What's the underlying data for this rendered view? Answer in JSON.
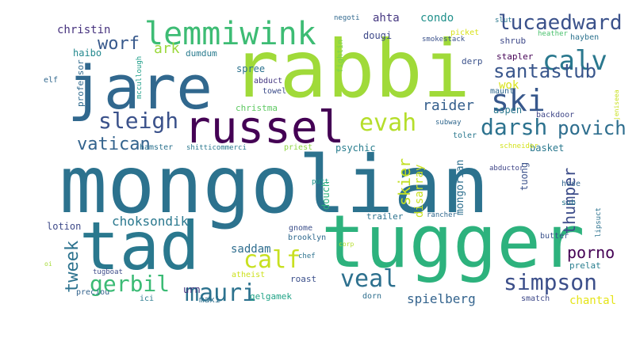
{
  "words": [
    {
      "text": "mongolian",
      "color": "#2c728e"
    },
    {
      "text": "rabbi",
      "color": "#a0da39"
    },
    {
      "text": "jare",
      "color": "#31688e"
    },
    {
      "text": "tugger",
      "color": "#2db27d"
    },
    {
      "text": "tad",
      "color": "#2a788e"
    },
    {
      "text": "russel",
      "color": "#440154"
    },
    {
      "text": "lemmiwink",
      "color": "#3dbc74"
    },
    {
      "text": "ski",
      "color": "#38588c"
    },
    {
      "text": "calv",
      "color": "#2a788e"
    },
    {
      "text": "lucaedward",
      "color": "#3b528b"
    },
    {
      "text": "santastub",
      "color": "#39568c"
    },
    {
      "text": "sleigh",
      "color": "#3b528b"
    },
    {
      "text": "evah",
      "color": "#b5de2b"
    },
    {
      "text": "darsh",
      "color": "#2c728e"
    },
    {
      "text": "povich",
      "color": "#2e6e8e"
    },
    {
      "text": "vatican",
      "color": "#33638d"
    },
    {
      "text": "worf",
      "color": "#38598c"
    },
    {
      "text": "calf",
      "color": "#c8e020"
    },
    {
      "text": "veal",
      "color": "#2d708e"
    },
    {
      "text": "mauri",
      "color": "#2c728e"
    },
    {
      "text": "simpson",
      "color": "#3c4f8a"
    },
    {
      "text": "gerbil",
      "color": "#3bbb75"
    },
    {
      "text": "tweek",
      "color": "#2c728e"
    },
    {
      "text": "thumper",
      "color": "#3d4d8a"
    },
    {
      "text": "skier",
      "color": "#c2df23"
    },
    {
      "text": "porno",
      "color": "#440154"
    },
    {
      "text": "raider",
      "color": "#355f8d"
    },
    {
      "text": "spielberg",
      "color": "#33638d"
    },
    {
      "text": "saddam",
      "color": "#2e6d8e"
    },
    {
      "text": "choksondik",
      "color": "#2a788e"
    },
    {
      "text": "christin",
      "color": "#46327e"
    },
    {
      "text": "condo",
      "color": "#21918c"
    },
    {
      "text": "ahta",
      "color": "#453781"
    },
    {
      "text": "dougi",
      "color": "#3e4989"
    },
    {
      "text": "wok",
      "color": "#d8e219"
    },
    {
      "text": "aspen",
      "color": "#2a788e"
    },
    {
      "text": "ark",
      "color": "#9bd93c"
    },
    {
      "text": "dumdum",
      "color": "#297b8e"
    },
    {
      "text": "haibo",
      "color": "#23888e"
    },
    {
      "text": "elf",
      "color": "#31688e"
    },
    {
      "text": "spree",
      "color": "#2c728e"
    },
    {
      "text": "abduct",
      "color": "#453882"
    },
    {
      "text": "towel",
      "color": "#3d4d8a"
    },
    {
      "text": "christma",
      "color": "#5ec962"
    },
    {
      "text": "hamster",
      "color": "#2c728e"
    },
    {
      "text": "shitticommerci",
      "color": "#2a788e"
    },
    {
      "text": "priest",
      "color": "#8fd744"
    },
    {
      "text": "psychic",
      "color": "#287d8e"
    },
    {
      "text": "basket",
      "color": "#2a788e"
    },
    {
      "text": "schneider",
      "color": "#d2e21b"
    },
    {
      "text": "lotion",
      "color": "#3e4a89"
    },
    {
      "text": "urn",
      "color": "#46337e"
    },
    {
      "text": "gelgamek",
      "color": "#20a386"
    },
    {
      "text": "chantal",
      "color": "#e5e419"
    },
    {
      "text": "prelat",
      "color": "#287d8e"
    },
    {
      "text": "trailer",
      "color": "#2c728e"
    },
    {
      "text": "butter",
      "color": "#3b528b"
    },
    {
      "text": "rancher",
      "color": "#31688e"
    },
    {
      "text": "sub",
      "color": "#2a788e"
    },
    {
      "text": "gnome",
      "color": "#3c4f8a"
    },
    {
      "text": "brooklyn",
      "color": "#306a8e"
    },
    {
      "text": "chef",
      "color": "#2c728e"
    },
    {
      "text": "atheist",
      "color": "#cde11d"
    },
    {
      "text": "roast",
      "color": "#3c508b"
    },
    {
      "text": "dorn",
      "color": "#2e6e8e"
    },
    {
      "text": "smatch",
      "color": "#3e4989"
    },
    {
      "text": "maxi",
      "color": "#2d708e"
    },
    {
      "text": "ici",
      "color": "#297a8e"
    },
    {
      "text": "preciou",
      "color": "#33638d"
    },
    {
      "text": "tugboat",
      "color": "#3e4c8a"
    },
    {
      "text": "oi",
      "color": "#a5db36"
    },
    {
      "text": "corp",
      "color": "#b5de2b"
    },
    {
      "text": "putt",
      "color": "#1f988b"
    },
    {
      "text": "hose",
      "color": "#32648e"
    },
    {
      "text": "abductor",
      "color": "#404688"
    },
    {
      "text": "disarray",
      "color": "#c8e020"
    },
    {
      "text": "mongorian",
      "color": "#2e6f8e"
    },
    {
      "text": "tuong",
      "color": "#3b528b"
    },
    {
      "text": "subway",
      "color": "#31688e"
    },
    {
      "text": "toler",
      "color": "#2a788e"
    },
    {
      "text": "backdoor",
      "color": "#3f4788"
    },
    {
      "text": "lipsuct",
      "color": "#2c728e"
    },
    {
      "text": "jeniseea",
      "color": "#c8e020"
    },
    {
      "text": "douch",
      "color": "#2db27d"
    },
    {
      "text": "derp",
      "color": "#3b528b"
    },
    {
      "text": "maunt",
      "color": "#30698e"
    },
    {
      "text": "stapler",
      "color": "#440154"
    },
    {
      "text": "shrub",
      "color": "#3e4989"
    },
    {
      "text": "heather",
      "color": "#4ac16d"
    },
    {
      "text": "hayben",
      "color": "#2c728e"
    },
    {
      "text": "slut",
      "color": "#2a788e"
    },
    {
      "text": "negoti",
      "color": "#31688e"
    },
    {
      "text": "picket",
      "color": "#d8e219"
    },
    {
      "text": "smokestack",
      "color": "#3b528b"
    },
    {
      "text": "fightin",
      "color": "#7ad151"
    },
    {
      "text": "mccullough",
      "color": "#1f9e89"
    },
    {
      "text": "professor",
      "color": "#306a8e"
    }
  ]
}
